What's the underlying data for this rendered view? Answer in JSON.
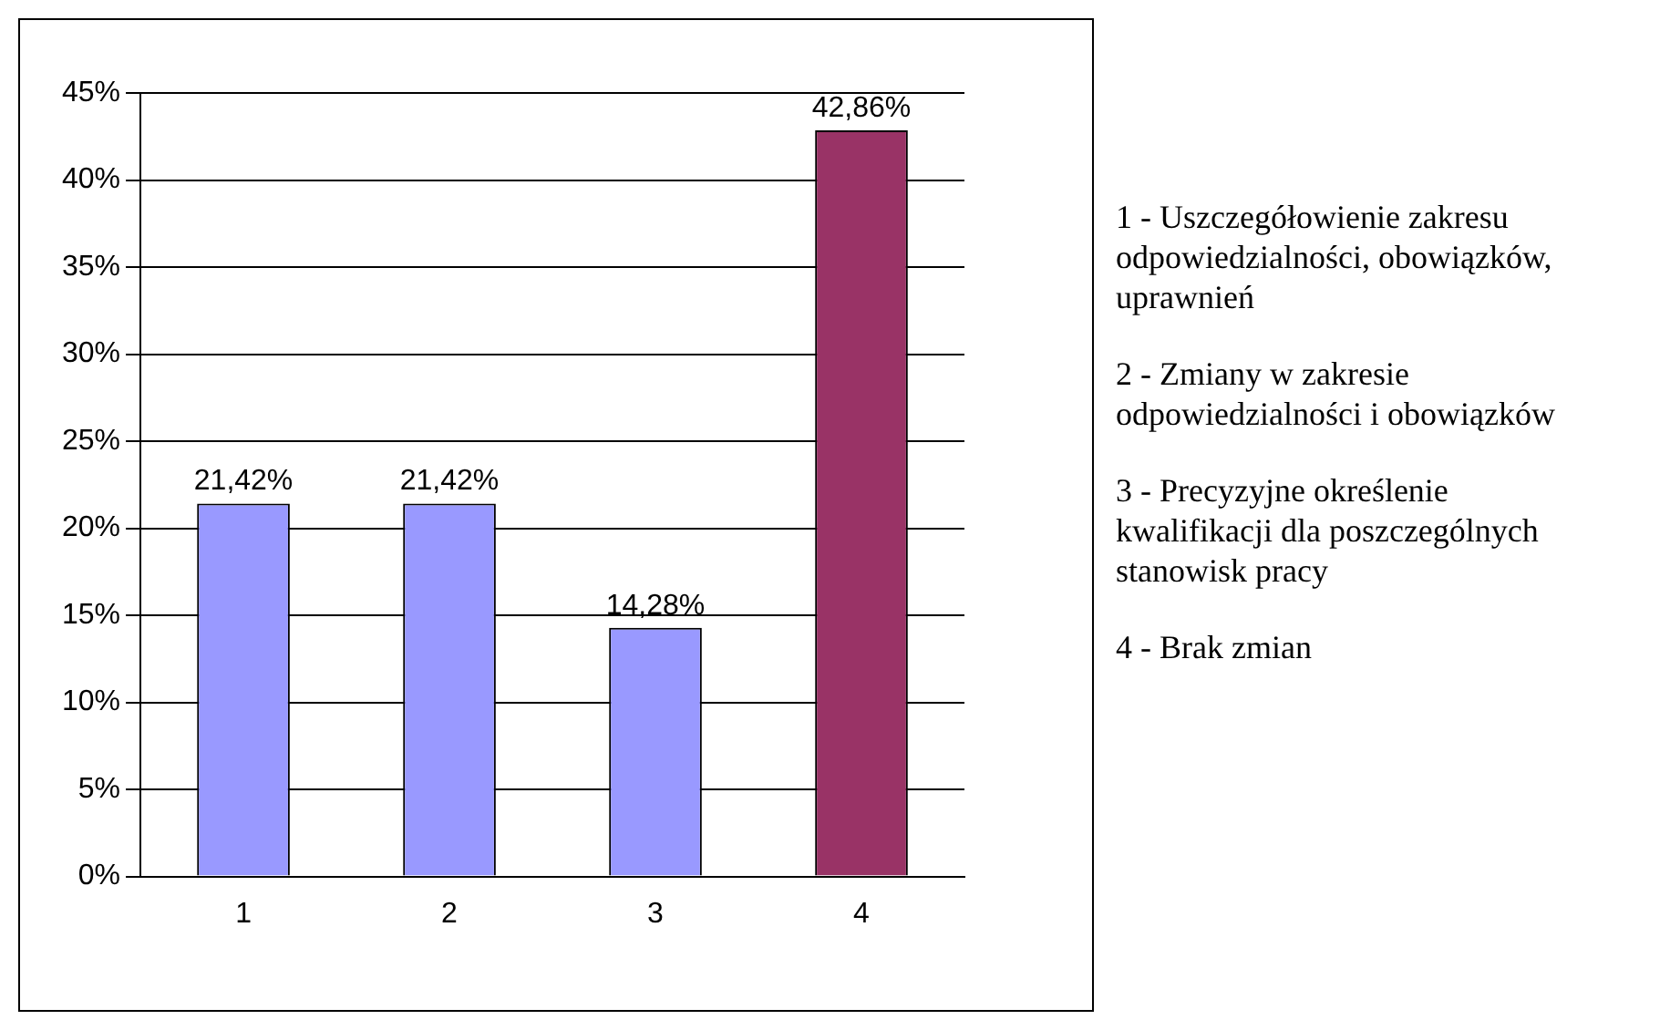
{
  "chart_data": {
    "type": "bar",
    "categories": [
      "1",
      "2",
      "3",
      "4"
    ],
    "values": [
      21.42,
      21.42,
      14.28,
      42.86
    ],
    "colors": [
      "#9999ff",
      "#9999ff",
      "#9999ff",
      "#993366"
    ],
    "value_labels": [
      "21,42%",
      "21,42%",
      "14,28%",
      "42,86%"
    ],
    "ylim": [
      0,
      45
    ],
    "yticks": [
      {
        "value": 0,
        "label": "0%"
      },
      {
        "value": 5,
        "label": "5%"
      },
      {
        "value": 10,
        "label": "10%"
      },
      {
        "value": 15,
        "label": "15%"
      },
      {
        "value": 20,
        "label": "20%"
      },
      {
        "value": 25,
        "label": "25%"
      },
      {
        "value": 30,
        "label": "30%"
      },
      {
        "value": 35,
        "label": "35%"
      },
      {
        "value": 40,
        "label": "40%"
      },
      {
        "value": 45,
        "label": "45%"
      }
    ],
    "grid": "y",
    "annotations": [
      "1 - Uszczegółowienie zakresu odpowiedzialności, obowiązków, uprawnień",
      "2 - Zmiany w zakresie odpowiedzialności i obowiązków",
      "3 - Precyzyjne określenie kwalifikacji dla poszczególnych stanowisk pracy",
      "4 - Brak zmian"
    ]
  }
}
